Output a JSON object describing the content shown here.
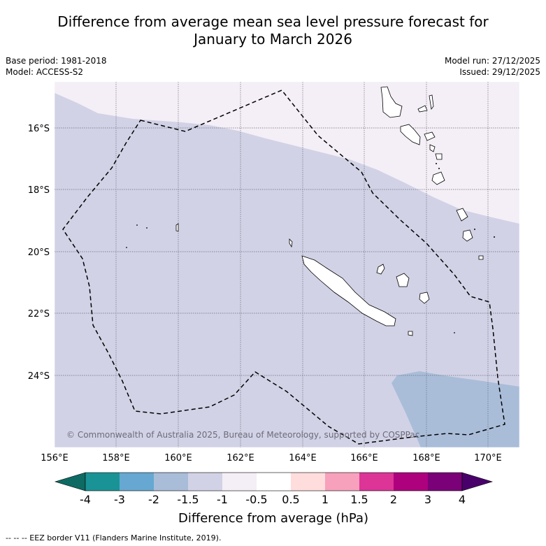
{
  "title": {
    "line1": "Difference from average mean sea level pressure forecast for",
    "line2": "January to March 2026"
  },
  "meta": {
    "base_period": "Base period: 1981-2018",
    "model": "Model: ACCESS-S2",
    "model_run": "Model run: 27/12/2025",
    "issued": "Issued: 29/12/2025"
  },
  "map": {
    "lon_labels": [
      "156°E",
      "158°E",
      "160°E",
      "162°E",
      "164°E",
      "166°E",
      "168°E",
      "170°E"
    ],
    "lat_labels": [
      "16°S",
      "18°S",
      "20°S",
      "22°S",
      "24°S"
    ],
    "copyright": "© Commonwealth of Australia 2025, Bureau of Meteorology, supported by COSPPac",
    "colors": {
      "band_neg_1_5_to_neg_1": "#d2d2e6",
      "band_neg_1_to_neg_0_5": "#f4eef6",
      "band_neg_2_to_neg_1_5": "#a9bdd9"
    }
  },
  "colorbar": {
    "tick_labels": [
      "-4",
      "-3",
      "-2",
      "-1.5",
      "-1",
      "-0.5",
      "0.5",
      "1",
      "1.5",
      "2",
      "3",
      "4"
    ],
    "colors": [
      "#0d6b63",
      "#1a9396",
      "#66a8d1",
      "#a9bdd9",
      "#d2d2e6",
      "#f4eef6",
      "#ffffff",
      "#ffdddd",
      "#f7a1bc",
      "#dd3497",
      "#ae017e",
      "#7a0177",
      "#49006a"
    ],
    "label": "Difference from average (hPa)"
  },
  "footnote": "--  --  -- EEZ border V11 (Flanders Marine Institute, 2019)."
}
